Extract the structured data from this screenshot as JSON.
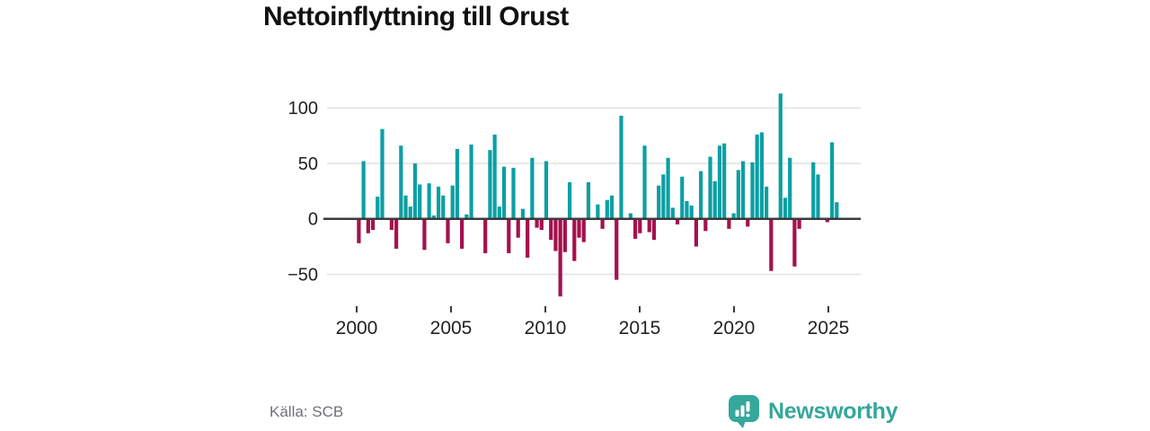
{
  "page": {
    "title": "Nettoinflyttning till Orust",
    "source": "Källa: SCB"
  },
  "branding": {
    "name": "Newsworthy",
    "logo_icon": "bar-chart-speech-bubble",
    "logo_color": "#35a79b"
  },
  "colors": {
    "positive": "#0c9fa4",
    "negative": "#a5104d",
    "grid": "#e2e2e2",
    "axis": "#3b3b3b",
    "tick_label": "#222222",
    "source_text": "#6f6f78"
  },
  "chart_data": {
    "type": "bar",
    "title": "Nettoinflyttning till Orust",
    "frequency": "quarterly",
    "start": "2000Q1",
    "end": "2025Q3",
    "grid": true,
    "ylim": [
      -78,
      118
    ],
    "yticks": [
      100,
      50,
      0,
      -50
    ],
    "xticks": [
      2000,
      2005,
      2010,
      2015,
      2020,
      2025
    ],
    "values": [
      -22,
      52,
      -13,
      -10,
      20,
      81,
      0,
      -10,
      -27,
      66,
      21,
      11,
      50,
      31,
      -28,
      32,
      3,
      29,
      21,
      -22,
      30,
      63,
      -27,
      4,
      67,
      0,
      0,
      -31,
      62,
      76,
      11,
      47,
      -31,
      46,
      -17,
      9,
      -35,
      55,
      -8,
      -10,
      52,
      -19,
      -29,
      -70,
      -30,
      33,
      -38,
      -17,
      -21,
      33,
      0,
      13,
      -9,
      17,
      21,
      -55,
      93,
      0,
      5,
      -18,
      -13,
      66,
      -12,
      -19,
      30,
      40,
      55,
      10,
      -5,
      38,
      16,
      12,
      -25,
      43,
      -11,
      56,
      34,
      66,
      68,
      -9,
      5,
      44,
      52,
      -7,
      51,
      76,
      78,
      29,
      -47,
      0,
      113,
      19,
      55,
      -43,
      -9,
      0,
      0,
      51,
      40,
      0,
      -3,
      69,
      15
    ]
  }
}
